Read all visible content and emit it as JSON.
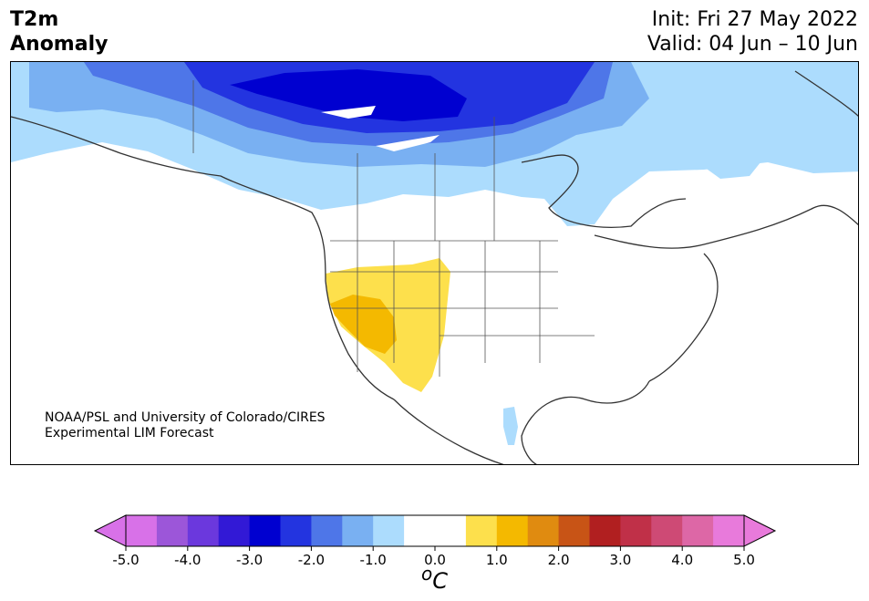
{
  "header": {
    "title_line1": "T2m",
    "title_line2": "Anomaly",
    "init": "Init: Fri 27 May 2022",
    "valid": "Valid: 04 Jun – 10 Jun"
  },
  "map": {
    "region": "North America",
    "credit_line1": "NOAA/PSL and University of Colorado/CIRES",
    "credit_line2": "Experimental LIM Forecast",
    "anomaly_regions": [
      {
        "name": "northern-canada-cold",
        "max_anomaly": -3.0
      },
      {
        "name": "western-us-warm",
        "max_anomaly": 1.5
      },
      {
        "name": "hudson-bay-cool",
        "max_anomaly": -1.0
      },
      {
        "name": "gulf-of-california-cool",
        "max_anomaly": -0.5
      }
    ]
  },
  "colorbar": {
    "unit": "oC",
    "unit_base": "C",
    "unit_sup": "o",
    "ticks": [
      "-5.0",
      "-4.0",
      "-3.0",
      "-2.0",
      "-1.0",
      "0.0",
      "1.0",
      "2.0",
      "3.0",
      "4.0",
      "5.0"
    ],
    "colors": [
      "#d871e8",
      "#9c56d9",
      "#6b38dd",
      "#3219d6",
      "#0000d0",
      "#2334e0",
      "#4e76e8",
      "#79b0f2",
      "#acdcfd",
      "#ffffff",
      "#ffffff",
      "#fde04c",
      "#f4b900",
      "#e08b10",
      "#c85416",
      "#b11f20",
      "#c03048",
      "#ce4a75",
      "#dd67a6",
      "#e87adb"
    ],
    "under_color": "#d871e8",
    "over_color": "#e87adb"
  }
}
